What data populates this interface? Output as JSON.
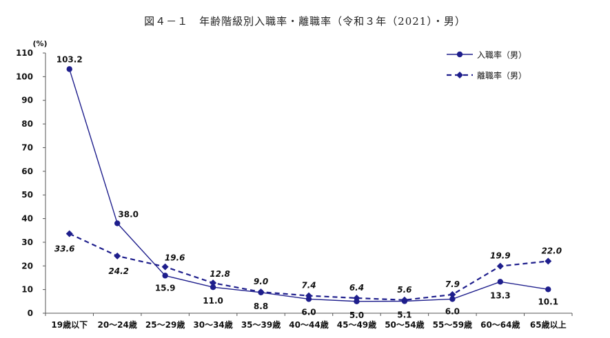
{
  "chart_data": {
    "type": "line",
    "title": "図４－１　年齢階級別入職率・離職率（令和３年（2021）・男）",
    "ylabel": "(%)",
    "ylim": [
      0,
      110
    ],
    "yticks": [
      0,
      10,
      20,
      30,
      40,
      50,
      60,
      70,
      80,
      90,
      100,
      110
    ],
    "categories": [
      "19歳以下",
      "20～24歳",
      "25～29歳",
      "30～34歳",
      "35～39歳",
      "40～44歳",
      "45～49歳",
      "50～54歳",
      "55～59歳",
      "60～64歳",
      "65歳以上"
    ],
    "series": [
      {
        "name": "入職率（男）",
        "values": [
          103.2,
          38.0,
          15.9,
          11.0,
          8.8,
          6.0,
          5.0,
          5.1,
          6.0,
          13.3,
          10.1
        ],
        "labels": [
          "103.2",
          "38.0",
          "15.9",
          "11.0",
          "8.8",
          "6.0",
          "5.0",
          "5.1",
          "6.0",
          "13.3",
          "10.1"
        ],
        "style": "solid",
        "marker": "circle",
        "color": "#1e1e8c"
      },
      {
        "name": "離職率（男）",
        "values": [
          33.6,
          24.2,
          19.6,
          12.8,
          9.0,
          7.4,
          6.4,
          5.6,
          7.9,
          19.9,
          22.0
        ],
        "labels": [
          "33.6",
          "24.2",
          "19.6",
          "12.8",
          "9.0",
          "7.4",
          "6.4",
          "5.6",
          "7.9",
          "19.9",
          "22.0"
        ],
        "style": "dashed",
        "marker": "diamond",
        "color": "#1e1e8c"
      }
    ],
    "legend": "top-right",
    "grid": false
  }
}
